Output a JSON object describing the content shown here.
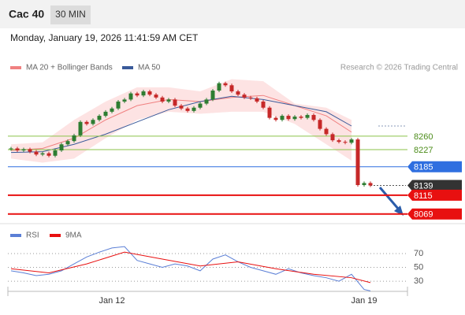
{
  "header": {
    "title": "Cac 40",
    "interval": "30 MIN",
    "timestamp": "Monday, January 19, 2026 11:41:59 AM CET"
  },
  "chart_data": [
    {
      "type": "candlestick",
      "credit": "Research © 2026 Trading Central",
      "categories": [
        null,
        null,
        null,
        null,
        null,
        null,
        null,
        null,
        null,
        null,
        null,
        null,
        null,
        null,
        null,
        null,
        "Jan 12",
        null,
        null,
        null,
        null,
        null,
        null,
        null,
        null,
        null,
        null,
        null,
        null,
        null,
        null,
        null,
        null,
        null,
        null,
        null,
        null,
        null,
        null,
        null,
        null,
        null,
        null,
        null,
        null,
        null,
        null,
        null,
        null,
        null,
        null,
        null,
        null,
        null,
        null,
        null,
        "Jan 19",
        null
      ],
      "closes": [
        8230,
        8225,
        8228,
        8222,
        8215,
        8218,
        8212,
        8225,
        8240,
        8248,
        8262,
        8295,
        8290,
        8300,
        8310,
        8320,
        8328,
        8345,
        8350,
        8365,
        8360,
        8370,
        8362,
        8355,
        8345,
        8350,
        8335,
        8328,
        8322,
        8330,
        8340,
        8350,
        8372,
        8390,
        8385,
        8370,
        8362,
        8355,
        8353,
        8345,
        8330,
        8305,
        8300,
        8310,
        8302,
        8308,
        8305,
        8312,
        8300,
        8278,
        8265,
        8250,
        8246,
        8244,
        8252,
        8140,
        8145,
        8139
      ],
      "up_color": "#2e7d32",
      "down_color": "#c62828",
      "band": {
        "name": "MA 20 + Bollinger Bands",
        "color": "#f08080",
        "fill": "#fde3e3",
        "x": [
          0,
          5,
          10,
          15,
          20,
          25,
          30,
          35,
          40,
          45,
          50,
          54
        ],
        "upper": [
          8240,
          8245,
          8300,
          8345,
          8380,
          8380,
          8370,
          8400,
          8395,
          8340,
          8330,
          8300
        ],
        "lower": [
          8205,
          8195,
          8205,
          8255,
          8300,
          8320,
          8315,
          8320,
          8320,
          8290,
          8240,
          8200
        ],
        "values": [
          8225,
          8230,
          8255,
          8300,
          8335,
          8350,
          8345,
          8355,
          8360,
          8335,
          8310,
          8270
        ]
      },
      "ma50": {
        "name": "MA 50",
        "color": "#3a5a9a",
        "x": [
          0,
          5,
          10,
          15,
          20,
          25,
          30,
          35,
          40,
          45,
          50,
          54
        ],
        "values": [
          8220,
          8222,
          8240,
          8265,
          8295,
          8325,
          8345,
          8358,
          8350,
          8335,
          8320,
          8285
        ]
      },
      "levels": [
        {
          "value": 8260,
          "color": "#8bc34a",
          "box": "#ffffff",
          "text": "#4c8c1a"
        },
        {
          "value": 8227,
          "color": "#8bc34a",
          "box": "#ffffff",
          "text": "#4c8c1a"
        },
        {
          "value": 8185,
          "color": "#2f6fe0",
          "box": "#2f6fe0",
          "text": "#ffffff"
        },
        {
          "value": 8139,
          "color": "#333333",
          "box": "#333333",
          "text": "#ffffff"
        },
        {
          "value": 8115,
          "color": "#e81010",
          "box": "#e81010",
          "text": "#ffffff"
        },
        {
          "value": 8069,
          "color": "#e81010",
          "box": "#e81010",
          "text": "#ffffff"
        }
      ],
      "ylim": [
        8053,
        8517
      ]
    },
    {
      "type": "line",
      "ylim": [
        13,
        95
      ],
      "yticks": [
        70,
        50,
        30
      ],
      "series": [
        {
          "name": "RSI",
          "color": "#5b7fd6",
          "x": [
            0,
            2,
            4,
            6,
            8,
            10,
            12,
            14,
            16,
            18,
            20,
            22,
            24,
            26,
            28,
            30,
            32,
            34,
            36,
            38,
            40,
            42,
            44,
            46,
            48,
            50,
            52,
            54,
            56,
            57
          ],
          "values": [
            45,
            42,
            38,
            40,
            45,
            55,
            65,
            72,
            78,
            80,
            60,
            55,
            50,
            55,
            52,
            45,
            62,
            68,
            58,
            50,
            45,
            40,
            48,
            42,
            38,
            35,
            30,
            40,
            18,
            16
          ]
        },
        {
          "name": "9MA",
          "color": "#e81010",
          "x": [
            0,
            6,
            12,
            18,
            24,
            30,
            36,
            42,
            48,
            54,
            57
          ],
          "values": [
            48,
            42,
            55,
            72,
            62,
            52,
            58,
            48,
            40,
            35,
            28
          ]
        }
      ]
    }
  ]
}
